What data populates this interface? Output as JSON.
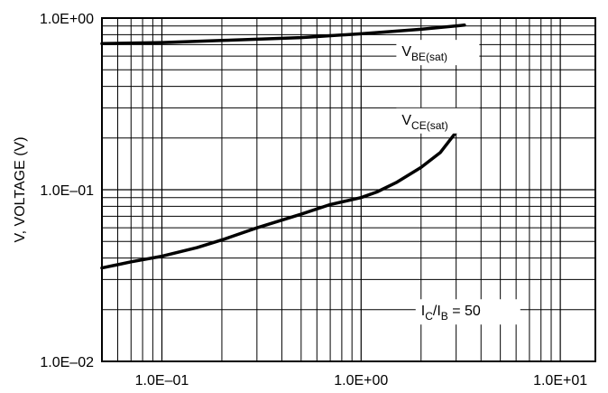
{
  "chart_data": {
    "type": "line",
    "title": "",
    "xlabel": "",
    "ylabel": "V, VOLTAGE (V)",
    "xscale": "log",
    "yscale": "log",
    "xlim": [
      0.05,
      15
    ],
    "ylim": [
      0.01,
      1.0
    ],
    "grid": true,
    "x_tick_labels": [
      {
        "value": 0.1,
        "label": "1.0E–01"
      },
      {
        "value": 1.0,
        "label": "1.0E+00"
      },
      {
        "value": 10.0,
        "label": "1.0E+01"
      }
    ],
    "y_tick_labels": [
      {
        "value": 0.01,
        "label": "1.0E–02"
      },
      {
        "value": 0.1,
        "label": "1.0E–01"
      },
      {
        "value": 1.0,
        "label": "1.0E+00"
      }
    ],
    "series": [
      {
        "name": "VBE(sat)",
        "label_main": "V",
        "label_sub": "BE(sat)",
        "color": "#000000",
        "x": [
          0.05,
          0.1,
          0.2,
          0.5,
          1.0,
          2.0,
          3.3
        ],
        "y": [
          0.71,
          0.72,
          0.74,
          0.77,
          0.81,
          0.86,
          0.91
        ]
      },
      {
        "name": "VCE(sat)",
        "label_main": "V",
        "label_sub": "CE(sat)",
        "color": "#000000",
        "x": [
          0.05,
          0.07,
          0.1,
          0.15,
          0.2,
          0.3,
          0.5,
          0.7,
          1.0,
          1.2,
          1.5,
          2.0,
          2.5,
          3.3
        ],
        "y": [
          0.035,
          0.038,
          0.041,
          0.046,
          0.051,
          0.06,
          0.072,
          0.082,
          0.09,
          0.097,
          0.11,
          0.135,
          0.165,
          0.25
        ]
      }
    ],
    "annotations": [
      {
        "main": "I",
        "sub1": "C",
        "mid": "/I",
        "sub2": "B",
        "tail": " = 50"
      }
    ]
  }
}
